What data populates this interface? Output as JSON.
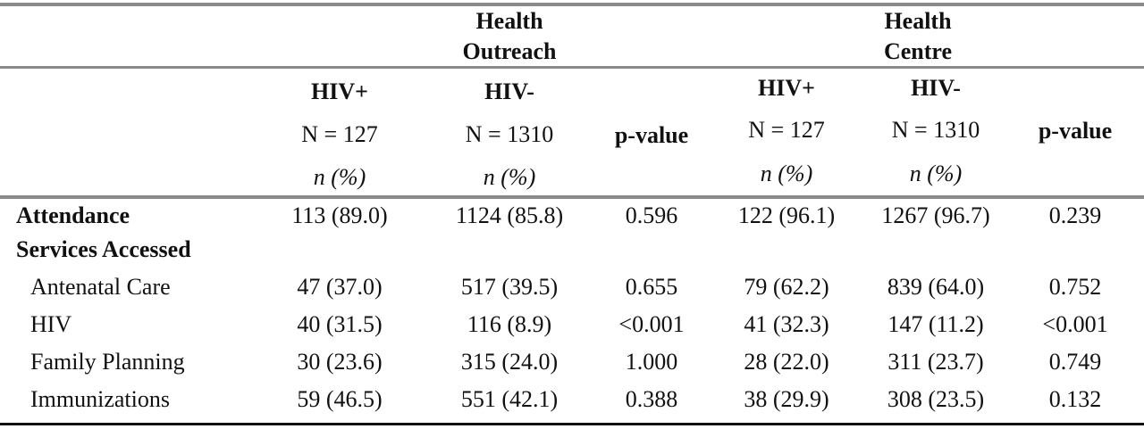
{
  "groups": [
    {
      "line1": "Health",
      "line2": "Outreach"
    },
    {
      "line1": "Health",
      "line2": "Centre"
    }
  ],
  "subheaders": [
    {
      "group": "HIV+",
      "n": "N = 127",
      "unit": "n (%)"
    },
    {
      "group": "HIV-",
      "n": "N = 1310",
      "unit": "n (%)"
    },
    {
      "label": "p-value"
    },
    {
      "group": "HIV+",
      "n": "N = 127",
      "unit": "n (%)"
    },
    {
      "group": "HIV-",
      "n": "N = 1310",
      "unit": "n (%)"
    },
    {
      "label": "p-value"
    }
  ],
  "rows": [
    {
      "label": "Attendance",
      "bold": true,
      "cells": [
        "113 (89.0)",
        "1124 (85.8)",
        "0.596",
        "122 (96.1)",
        "1267 (96.7)",
        "0.239"
      ]
    },
    {
      "label": "Services Accessed",
      "bold": true,
      "cells": [
        "",
        "",
        "",
        "",
        "",
        ""
      ]
    },
    {
      "label": "Antenatal Care",
      "bold": false,
      "cells": [
        "47 (37.0)",
        "517 (39.5)",
        "0.655",
        "79 (62.2)",
        "839 (64.0)",
        "0.752"
      ]
    },
    {
      "label": "HIV",
      "bold": false,
      "cells": [
        "40 (31.5)",
        "116 (8.9)",
        "<0.001",
        "41 (32.3)",
        "147 (11.2)",
        "<0.001"
      ]
    },
    {
      "label": "Family Planning",
      "bold": false,
      "cells": [
        "30 (23.6)",
        "315 (24.0)",
        "1.000",
        "28 (22.0)",
        "311 (23.7)",
        "0.749"
      ]
    },
    {
      "label": "Immunizations",
      "bold": false,
      "cells": [
        "59 (46.5)",
        "551 (42.1)",
        "0.388",
        "38 (29.9)",
        "308 (23.5)",
        "0.132"
      ]
    }
  ]
}
